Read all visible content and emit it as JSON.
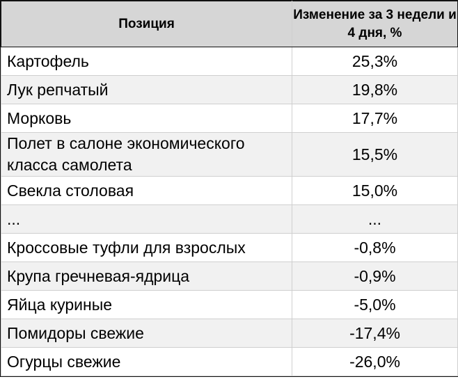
{
  "table": {
    "headers": [
      "Позиция",
      "Изменение за 3 недели и 4 дня, %"
    ],
    "rows": [
      {
        "item": "Картофель",
        "change": "25,3%"
      },
      {
        "item": "Лук репчатый",
        "change": "19,8%"
      },
      {
        "item": "Морковь",
        "change": "17,7%"
      },
      {
        "item": "Полет в салоне экономического класса самолета",
        "change": "15,5%"
      },
      {
        "item": "Свекла столовая",
        "change": "15,0%"
      },
      {
        "item": "...",
        "change": "..."
      },
      {
        "item": "Кроссовые туфли для взрослых",
        "change": "-0,8%"
      },
      {
        "item": "Крупа гречневая-ядрица",
        "change": "-0,9%"
      },
      {
        "item": "Яйца куриные",
        "change": "-5,0%"
      },
      {
        "item": "Помидоры свежие",
        "change": "-17,4%"
      },
      {
        "item": "Огурцы свежие",
        "change": "-26,0%"
      }
    ]
  }
}
